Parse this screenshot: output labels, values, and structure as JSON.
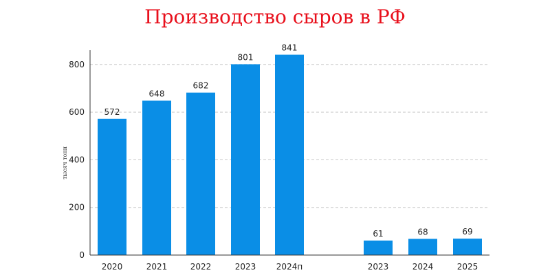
{
  "colors": {
    "title": "#e8101c",
    "bar": "#0a8ee6",
    "grid": "#c8c8c8",
    "axis": "#333333"
  },
  "chart_data": {
    "type": "bar",
    "title": "Производство сыров в РФ",
    "ylabel": "тысяч тонн",
    "xlabel": "",
    "ylim": [
      0,
      860
    ],
    "yticks": [
      0,
      200,
      400,
      600,
      800
    ],
    "grid": true,
    "grid_style": "dashed",
    "groups": [
      {
        "categories": [
          "2020",
          "2021",
          "2022",
          "2023",
          "2024п"
        ],
        "values": [
          572,
          648,
          682,
          801,
          841
        ]
      },
      {
        "categories": [
          "2023",
          "2024",
          "2025"
        ],
        "values": [
          61,
          68,
          69
        ]
      }
    ]
  }
}
